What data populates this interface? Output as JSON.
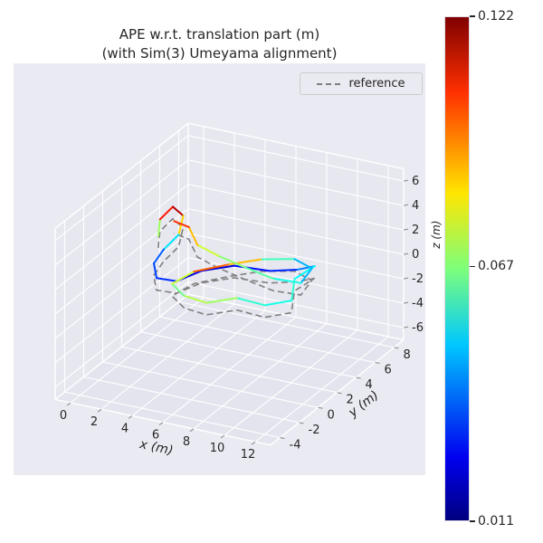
{
  "title": {
    "line1": "APE w.r.t. translation part (m)",
    "line2": "(with Sim(3) Umeyama alignment)"
  },
  "legend": {
    "items": [
      {
        "label": "reference",
        "style": "dashed",
        "color": "#7f7f7f"
      }
    ]
  },
  "axes": {
    "xlabel": "x (m)",
    "ylabel": "y (m)",
    "zlabel": "z (m)",
    "xticks": [
      0,
      2,
      4,
      6,
      8,
      10,
      12
    ],
    "yticks": [
      -4,
      -2,
      0,
      2,
      4,
      6,
      8
    ],
    "zticks": [
      -6,
      -4,
      -2,
      0,
      2,
      4,
      6
    ],
    "xlim": [
      -1,
      13
    ],
    "ylim": [
      -5,
      9
    ],
    "zlim": [
      -7,
      7
    ]
  },
  "colors": {
    "axes_bg": "#eaeaf2",
    "pane": "#e7e7f0",
    "pane_floor": "#e4e4ee",
    "grid": "#ffffff",
    "text": "#262626",
    "reference": "#7f7f7f"
  },
  "colorbar": {
    "vmin": 0.011,
    "vmax": 0.122,
    "colormap": "jet",
    "ticks": [
      {
        "label": "0.122",
        "value": 0.122
      },
      {
        "label": "0.067",
        "value": 0.067
      },
      {
        "label": "0.011",
        "value": 0.011
      }
    ],
    "stops": [
      {
        "t": 0.0,
        "color": "#000080"
      },
      {
        "t": 0.125,
        "color": "#0000f0"
      },
      {
        "t": 0.35,
        "color": "#00c8ff"
      },
      {
        "t": 0.5,
        "color": "#7dff7a"
      },
      {
        "t": 0.65,
        "color": "#ffe600"
      },
      {
        "t": 0.85,
        "color": "#ff3000"
      },
      {
        "t": 1.0,
        "color": "#800000"
      }
    ]
  },
  "chart_data": {
    "type": "line3d",
    "title": "APE w.r.t. translation part (m) (with Sim(3) Umeyama alignment)",
    "xlabel": "x (m)",
    "ylabel": "y (m)",
    "zlabel": "z (m)",
    "xlim": [
      -1,
      13
    ],
    "ylim": [
      -5,
      9
    ],
    "zlim": [
      -7,
      7
    ],
    "grid": true,
    "legend_position": "upper right",
    "colormap": "jet",
    "clim": [
      0.011,
      0.122
    ],
    "series": [
      {
        "name": "reference",
        "style": "dashed",
        "color": "#7f7f7f",
        "points": [
          [
            2.3,
            0.5,
            2.9
          ],
          [
            2.1,
            1.0,
            3.9
          ],
          [
            2.5,
            1.7,
            4.6
          ],
          [
            3.3,
            1.5,
            4.2
          ],
          [
            3.5,
            0.7,
            3.2
          ],
          [
            2.9,
            0.1,
            2.2
          ],
          [
            2.5,
            -0.3,
            1.2
          ],
          [
            2.8,
            -0.5,
            0.2
          ],
          [
            3.8,
            0.0,
            -0.1
          ],
          [
            4.8,
            1.0,
            0.4
          ],
          [
            6.3,
            2.0,
            0.6
          ],
          [
            8.3,
            2.5,
            0.4
          ],
          [
            9.8,
            3.0,
            0.6
          ],
          [
            10.3,
            4.0,
            0.4
          ],
          [
            9.3,
            3.5,
            -0.6
          ],
          [
            9.6,
            2.7,
            -1.8
          ],
          [
            8.3,
            2.0,
            -2.1
          ],
          [
            6.8,
            1.5,
            -1.6
          ],
          [
            5.3,
            0.7,
            -1.9
          ],
          [
            4.1,
            0.3,
            -1.4
          ],
          [
            3.5,
            0.0,
            -0.4
          ],
          [
            4.3,
            1.0,
            0.2
          ],
          [
            5.8,
            2.3,
            0.4
          ],
          [
            7.3,
            3.3,
            0.6
          ],
          [
            8.8,
            4.3,
            0.4
          ],
          [
            9.5,
            5.0,
            -0.6
          ],
          [
            9.1,
            4.5,
            -1.6
          ],
          [
            7.8,
            3.7,
            -1.1
          ],
          [
            6.3,
            3.0,
            -0.1
          ],
          [
            5.1,
            2.3,
            0.9
          ],
          [
            4.1,
            1.7,
            1.9
          ],
          [
            3.3,
            2.1,
            2.9
          ],
          [
            2.7,
            1.5,
            3.6
          ]
        ]
      },
      {
        "name": "APE w.r.t. translation part (m)",
        "style": "solid",
        "colormap": "jet",
        "clim": [
          0.011,
          0.122
        ],
        "points": [
          [
            2.0,
            1.0,
            3.5
          ],
          [
            1.8,
            1.5,
            4.5
          ],
          [
            2.2,
            2.2,
            5.2
          ],
          [
            3.0,
            2.0,
            4.8
          ],
          [
            3.2,
            1.2,
            3.8
          ],
          [
            2.6,
            0.6,
            2.8
          ],
          [
            2.2,
            0.2,
            1.8
          ],
          [
            2.5,
            0.0,
            0.8
          ],
          [
            3.5,
            0.5,
            0.5
          ],
          [
            4.5,
            1.5,
            1.0
          ],
          [
            6.0,
            2.5,
            1.2
          ],
          [
            8.0,
            3.0,
            1.0
          ],
          [
            9.5,
            3.5,
            1.2
          ],
          [
            10.0,
            4.5,
            1.0
          ],
          [
            9.0,
            4.0,
            0.0
          ],
          [
            9.3,
            3.2,
            -1.2
          ],
          [
            8.0,
            2.5,
            -1.5
          ],
          [
            6.5,
            2.0,
            -1.0
          ],
          [
            5.0,
            1.2,
            -1.3
          ],
          [
            3.8,
            0.8,
            -0.8
          ],
          [
            3.2,
            0.5,
            0.2
          ],
          [
            4.0,
            1.5,
            0.8
          ],
          [
            5.5,
            2.8,
            1.0
          ],
          [
            7.0,
            3.8,
            1.2
          ],
          [
            8.5,
            4.8,
            1.0
          ],
          [
            9.2,
            5.5,
            0.0
          ],
          [
            8.8,
            5.0,
            -1.0
          ],
          [
            7.5,
            4.2,
            -0.5
          ],
          [
            6.0,
            3.5,
            0.5
          ],
          [
            4.8,
            2.8,
            1.5
          ],
          [
            3.8,
            2.2,
            2.5
          ],
          [
            3.0,
            2.6,
            3.5
          ],
          [
            2.4,
            2.0,
            4.2
          ]
        ],
        "ape": [
          0.05,
          0.09,
          0.122,
          0.11,
          0.06,
          0.04,
          0.03,
          0.035,
          0.025,
          0.02,
          0.022,
          0.03,
          0.028,
          0.05,
          0.055,
          0.06,
          0.05,
          0.065,
          0.075,
          0.07,
          0.06,
          0.09,
          0.105,
          0.07,
          0.05,
          0.04,
          0.05,
          0.06,
          0.065,
          0.07,
          0.08,
          0.095,
          0.11
        ]
      }
    ]
  }
}
